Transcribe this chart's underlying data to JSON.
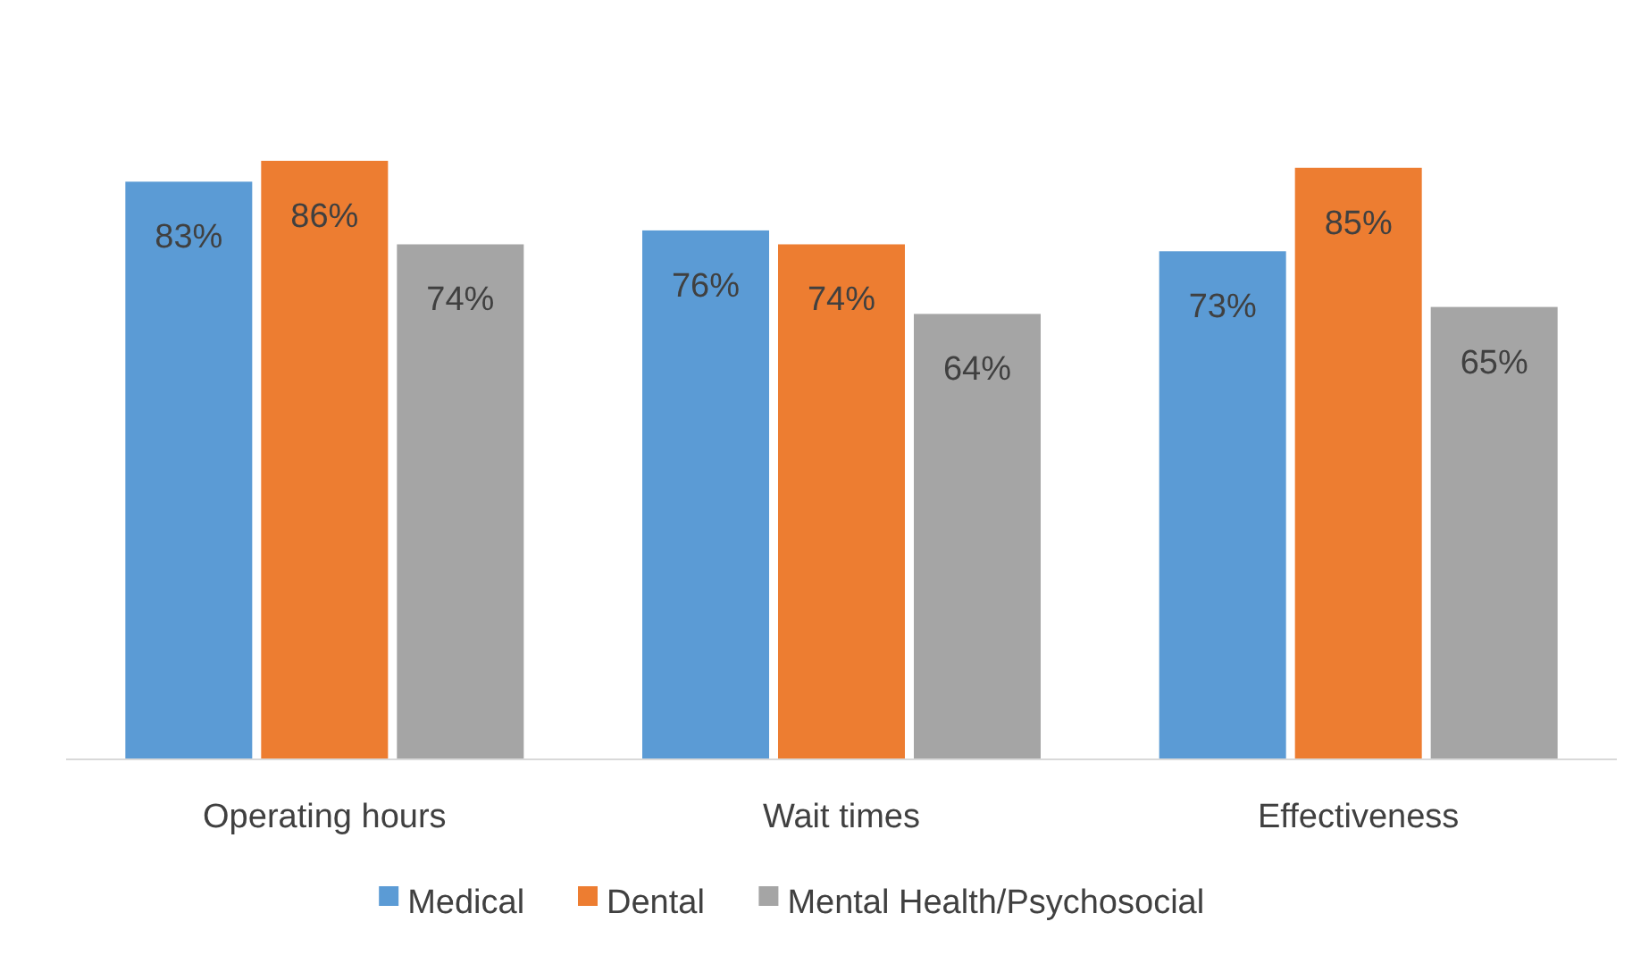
{
  "chart_data": {
    "type": "bar",
    "categories": [
      "Operating hours",
      "Wait times",
      "Effectiveness"
    ],
    "series": [
      {
        "name": "Medical",
        "color": "#5b9bd5",
        "values": [
          83,
          76,
          73
        ],
        "value_labels": [
          "83%",
          "76%",
          "73%"
        ]
      },
      {
        "name": "Dental",
        "color": "#ed7d31",
        "values": [
          86,
          74,
          85
        ],
        "value_labels": [
          "86%",
          "74%",
          "85%"
        ]
      },
      {
        "name": "Mental Health/Psychosocial",
        "color": "#a5a5a5",
        "values": [
          74,
          64,
          65
        ],
        "value_labels": [
          "74%",
          "64%",
          "65%"
        ]
      }
    ],
    "legend": "bottom"
  }
}
